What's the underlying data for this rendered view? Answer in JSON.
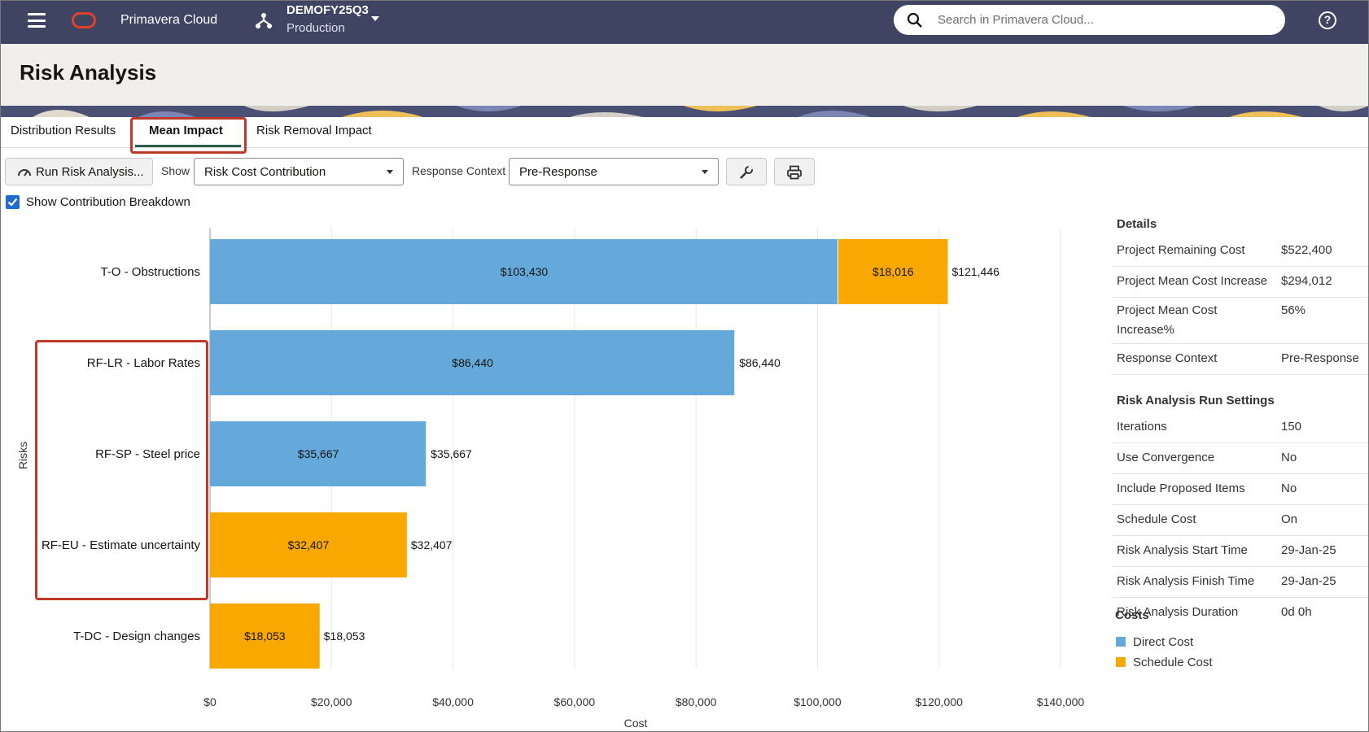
{
  "topbar": {
    "app_name": "Primavera Cloud",
    "workspace_name": "DEMOFY25Q3",
    "workspace_env": "Production",
    "search_placeholder": "Search in Primavera Cloud..."
  },
  "page": {
    "title": "Risk Analysis"
  },
  "tabs": [
    {
      "label": "Distribution Results",
      "active": false
    },
    {
      "label": "Mean Impact",
      "active": true
    },
    {
      "label": "Risk Removal Impact",
      "active": false
    }
  ],
  "toolbar": {
    "run_label": "Run Risk Analysis...",
    "show_label": "Show",
    "show_value": "Risk Cost Contribution",
    "context_label": "Response Context",
    "context_value": "Pre-Response"
  },
  "breakdown": {
    "label": "Show Contribution Breakdown",
    "checked": true
  },
  "chart_data": {
    "type": "bar",
    "orientation": "horizontal",
    "stacked": true,
    "categories": [
      "T-O - Obstructions",
      "RF-LR - Labor Rates",
      "RF-SP - Steel price",
      "RF-EU - Estimate uncertainty",
      "T-DC - Design changes"
    ],
    "series": [
      {
        "name": "Direct Cost",
        "color": "#64a9d9",
        "values": [
          103430,
          86440,
          35667,
          0,
          0
        ],
        "labels": [
          "$103,430",
          "$86,440",
          "$35,667",
          "",
          ""
        ]
      },
      {
        "name": "Schedule Cost",
        "color": "#f8a800",
        "values": [
          18016,
          0,
          0,
          32407,
          18053
        ],
        "labels": [
          "$18,016",
          "",
          "",
          "$32,407",
          "$18,053"
        ]
      }
    ],
    "totals": [
      "$121,446",
      "$86,440",
      "$35,667",
      "$32,407",
      "$18,053"
    ],
    "xlim": [
      0,
      140000
    ],
    "xticks": [
      "$0",
      "$20,000",
      "$40,000",
      "$60,000",
      "$80,000",
      "$100,000",
      "$120,000",
      "$140,000"
    ],
    "xlabel": "Cost",
    "ylabel": "Risks"
  },
  "details": {
    "title": "Details",
    "rows": [
      {
        "key": "Project Remaining Cost",
        "value": "$522,400"
      },
      {
        "key": "Project Mean Cost Increase",
        "value": "$294,012"
      },
      {
        "key": "Project Mean Cost Increase%",
        "value": "56%"
      },
      {
        "key": "Response Context",
        "value": "Pre-Response"
      }
    ]
  },
  "run_settings": {
    "title": "Risk Analysis Run Settings",
    "rows": [
      {
        "key": "Iterations",
        "value": "150"
      },
      {
        "key": "Use Convergence",
        "value": "No"
      },
      {
        "key": "Include Proposed Items",
        "value": "No"
      },
      {
        "key": "Schedule Cost",
        "value": "On"
      },
      {
        "key": "Risk Analysis Start Time",
        "value": "29-Jan-25"
      },
      {
        "key": "Risk Analysis Finish Time",
        "value": "29-Jan-25"
      },
      {
        "key": "Risk Analysis Duration",
        "value": "0d 0h"
      }
    ]
  },
  "costs_legend": {
    "title": "Costs",
    "items": [
      {
        "label": "Direct Cost",
        "color": "#64a9d9"
      },
      {
        "label": "Schedule Cost",
        "color": "#f8a800"
      }
    ]
  }
}
